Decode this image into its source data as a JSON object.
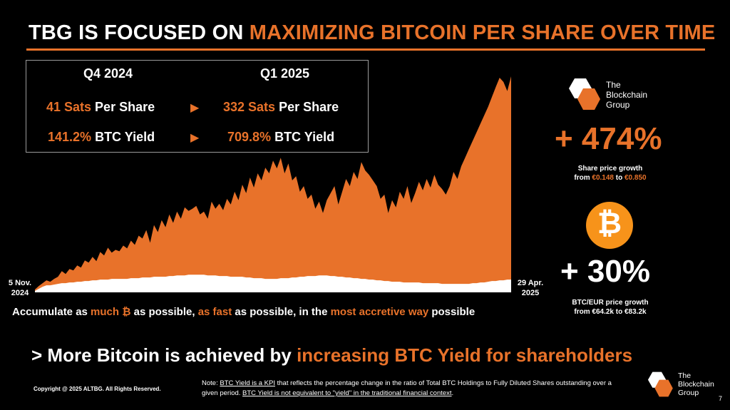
{
  "header": {
    "title_prefix": "TBG IS FOCUSED ON ",
    "title_highlight": "MAXIMIZING BITCOIN PER SHARE OVER TIME"
  },
  "kpi_box": {
    "col1_header": "Q4 2024",
    "col2_header": "Q1 2025",
    "row1": {
      "left_value": "41 Sats",
      "left_suffix": " Per Share",
      "right_value": "332 Sats",
      "right_suffix": " Per Share"
    },
    "row2": {
      "left_value": "141.2%",
      "left_suffix": " BTC Yield",
      "right_value": "709.8%",
      "right_suffix": " BTC Yield"
    },
    "arrow": "▶"
  },
  "chart_data": {
    "type": "area",
    "x_start_label": [
      "5 Nov.",
      "2024"
    ],
    "x_end_label": [
      "29 Apr.",
      "2025"
    ],
    "series": [
      {
        "color": "#e8722a",
        "values": [
          4,
          9,
          13,
          17,
          15,
          19,
          22,
          30,
          26,
          33,
          31,
          38,
          35,
          45,
          42,
          50,
          44,
          57,
          52,
          63,
          56,
          60,
          58,
          66,
          62,
          73,
          67,
          80,
          76,
          88,
          70,
          95,
          85,
          102,
          92,
          110,
          98,
          114,
          104,
          120,
          115,
          118,
          122,
          110,
          114,
          104,
          128,
          118,
          125,
          116,
          132,
          124,
          142,
          130,
          152,
          140,
          162,
          148,
          168,
          158,
          176,
          168,
          186,
          175,
          190,
          168,
          182,
          158,
          164,
          142,
          150,
          132,
          138,
          118,
          128,
          112,
          130,
          140,
          150,
          124,
          142,
          160,
          150,
          170,
          160,
          184,
          172,
          166,
          158,
          150,
          132,
          138,
          112,
          130,
          120,
          142,
          132,
          150,
          126,
          140,
          156,
          144,
          160,
          148,
          166,
          152,
          146,
          138,
          150,
          170,
          160,
          178,
          190,
          202,
          214,
          226,
          238,
          250,
          262,
          276,
          290,
          303,
          297,
          284,
          305
        ]
      },
      {
        "color": "#ffffff",
        "values": [
          2,
          5,
          8,
          10,
          10,
          11,
          12,
          13,
          13,
          14,
          14,
          15,
          15,
          16,
          16,
          17,
          17,
          18,
          18,
          18,
          19,
          19,
          19,
          19,
          19,
          20,
          20,
          20,
          21,
          21,
          21,
          22,
          22,
          22,
          22,
          23,
          23,
          24,
          24,
          24,
          25,
          25,
          25,
          25,
          25,
          24,
          24,
          24,
          23,
          23,
          23,
          22,
          22,
          22,
          22,
          21,
          21,
          20,
          20,
          20,
          19,
          19,
          19,
          19,
          20,
          20,
          20,
          21,
          21,
          22,
          22,
          23,
          23,
          23,
          24,
          24,
          24,
          23,
          23,
          22,
          22,
          21,
          21,
          20,
          20,
          19,
          19,
          18,
          18,
          17,
          17,
          16,
          16,
          15,
          15,
          15,
          14,
          14,
          14,
          14,
          14,
          13,
          13,
          13,
          13,
          13,
          12,
          12,
          12,
          12,
          12,
          12,
          12,
          12,
          13,
          13,
          14,
          14,
          15,
          16,
          16,
          17,
          17,
          18,
          18
        ]
      }
    ]
  },
  "tagline": {
    "p1": "Accumulate as ",
    "h1": "much ",
    "btc_symbol": "₿",
    "p2": " as possible, ",
    "h2": "as fast",
    "p3": " as possible, in the ",
    "h3": "most accretive way",
    "p4": " possible"
  },
  "stats": {
    "share": {
      "value": "+ 474%",
      "caption_line1": "Share price growth",
      "caption_from": "from ",
      "from_value": "€0.148",
      "caption_to": " to ",
      "to_value": "€0.850"
    },
    "btc": {
      "value": "+ 30%",
      "caption_line1": "BTC/EUR price growth",
      "caption_line2": "from €64.2k to €83.2k",
      "coin_symbol": "₿"
    }
  },
  "logo": {
    "line1": "The",
    "line2": "Blockchain",
    "line3": "Group"
  },
  "headline": {
    "prefix": "> More Bitcoin is achieved by ",
    "highlight": "increasing BTC Yield for shareholders"
  },
  "footer": {
    "copyright": "Copyright @ 2025 ALTBG. All Rights Reserved.",
    "note_prefix": "Note: ",
    "note_u1": "BTC Yield is a KPI",
    "note_mid": " that reflects the percentage change in the ratio of Total BTC Holdings to Fully Diluted Shares outstanding over a given period. ",
    "note_u2": "BTC Yield is not equivalent to \"yield\" in the traditional financial context",
    "note_end": ".",
    "page_number": "7"
  },
  "colors": {
    "accent": "#e8722a",
    "background": "#000000",
    "text": "#ffffff"
  }
}
